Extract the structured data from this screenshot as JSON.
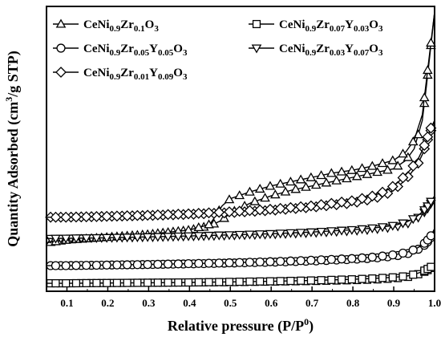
{
  "chart_data": {
    "type": "line",
    "xlabel": "Relative pressure (P/P",
    "xlabel_sup": "0",
    "xlabel_end": ")",
    "ylabel": "Quantity Adsorbed (cm",
    "ylabel_sup": "3",
    "ylabel_end": "/g STP)",
    "xlim": [
      0.05,
      1.0
    ],
    "xticks": [
      "0.1",
      "0.2",
      "0.3",
      "0.4",
      "0.5",
      "0.6",
      "0.7",
      "0.8",
      "0.9",
      "1.0"
    ],
    "xtick_values": [
      0.1,
      0.2,
      0.3,
      0.4,
      0.5,
      0.6,
      0.7,
      0.8,
      0.9,
      1.0
    ],
    "ylim": [
      0,
      100
    ],
    "y_axis_values_shown": false,
    "grid": false,
    "legend_placement": "top",
    "colors": {
      "line": "#000000",
      "marker_fill": "#ffffff",
      "background": "#ffffff"
    },
    "series": [
      {
        "name": [
          [
            "CeNi",
            ""
          ],
          [
            "0.9",
            "sub"
          ],
          [
            "Zr",
            ""
          ],
          [
            "0.1",
            "sub"
          ],
          [
            "O",
            ""
          ],
          [
            "3",
            "sub"
          ]
        ],
        "marker": "triangle-up",
        "x": [
          0.05,
          0.1,
          0.2,
          0.3,
          0.4,
          0.45,
          0.48,
          0.5,
          0.55,
          0.6,
          0.65,
          0.7,
          0.75,
          0.8,
          0.85,
          0.9,
          0.93,
          0.95,
          0.97,
          0.98,
          0.99,
          1.0
        ],
        "adsorption": [
          17.0,
          18.0,
          19.0,
          20.0,
          21.5,
          23.0,
          25.0,
          27.5,
          31.0,
          33.5,
          35.5,
          37.0,
          38.5,
          40.0,
          41.5,
          43.0,
          46.0,
          50.0,
          60.0,
          72.0,
          85.0,
          98.0
        ],
        "desorption": [
          17.0,
          18.0,
          19.0,
          20.0,
          21.5,
          23.5,
          30.0,
          32.5,
          35.0,
          37.0,
          38.5,
          40.0,
          41.5,
          42.5,
          44.0,
          46.0,
          49.0,
          53.0,
          62.0,
          74.0,
          86.0,
          98.0
        ]
      },
      {
        "name": [
          [
            "CeNi",
            ""
          ],
          [
            "0.9",
            "sub"
          ],
          [
            "Zr",
            ""
          ],
          [
            "0.07",
            "sub"
          ],
          [
            "Y",
            ""
          ],
          [
            "0.03",
            "sub"
          ],
          [
            "O",
            ""
          ],
          [
            "3",
            "sub"
          ]
        ],
        "marker": "square",
        "x": [
          0.05,
          0.1,
          0.2,
          0.3,
          0.4,
          0.5,
          0.6,
          0.7,
          0.8,
          0.85,
          0.9,
          0.93,
          0.95,
          0.97,
          0.98,
          0.99,
          1.0
        ],
        "adsorption": [
          2.8,
          2.8,
          2.9,
          3.0,
          3.1,
          3.2,
          3.4,
          3.6,
          3.9,
          4.1,
          4.5,
          4.9,
          5.5,
          6.5,
          7.2,
          8.0,
          10.0
        ],
        "desorption": [
          2.8,
          2.8,
          2.9,
          3.0,
          3.1,
          3.3,
          3.5,
          3.8,
          4.2,
          4.5,
          4.9,
          5.3,
          5.9,
          6.9,
          7.6,
          8.4,
          10.0
        ]
      },
      {
        "name": [
          [
            "CeNi",
            ""
          ],
          [
            "0.9",
            "sub"
          ],
          [
            "Zr",
            ""
          ],
          [
            "0.05",
            "sub"
          ],
          [
            "Y",
            ""
          ],
          [
            "0.05",
            "sub"
          ],
          [
            "O",
            ""
          ],
          [
            "3",
            "sub"
          ]
        ],
        "marker": "circle",
        "x": [
          0.05,
          0.1,
          0.2,
          0.3,
          0.4,
          0.5,
          0.6,
          0.7,
          0.8,
          0.85,
          0.9,
          0.93,
          0.95,
          0.97,
          0.98,
          0.99,
          1.0
        ],
        "adsorption": [
          9.0,
          9.0,
          9.2,
          9.4,
          9.6,
          9.9,
          10.2,
          10.6,
          11.2,
          11.6,
          12.3,
          13.0,
          14.0,
          15.5,
          16.8,
          18.5,
          22.0
        ],
        "desorption": [
          9.0,
          9.0,
          9.2,
          9.4,
          9.7,
          10.0,
          10.4,
          10.9,
          11.5,
          12.0,
          12.8,
          13.6,
          14.6,
          16.2,
          17.5,
          19.2,
          22.0
        ]
      },
      {
        "name": [
          [
            "CeNi",
            ""
          ],
          [
            "0.9",
            "sub"
          ],
          [
            "Zr",
            ""
          ],
          [
            "0.03",
            "sub"
          ],
          [
            "Y",
            ""
          ],
          [
            "0.07",
            "sub"
          ],
          [
            "O",
            ""
          ],
          [
            "3",
            "sub"
          ]
        ],
        "marker": "triangle-down",
        "x": [
          0.05,
          0.1,
          0.2,
          0.3,
          0.4,
          0.5,
          0.6,
          0.7,
          0.8,
          0.85,
          0.9,
          0.93,
          0.95,
          0.97,
          0.98,
          0.99,
          1.0
        ],
        "adsorption": [
          18.5,
          18.6,
          18.8,
          19.0,
          19.3,
          19.6,
          20.0,
          20.5,
          21.2,
          21.7,
          22.5,
          23.5,
          24.8,
          27.0,
          28.5,
          30.5,
          33.5
        ],
        "desorption": [
          18.5,
          18.6,
          18.8,
          19.1,
          19.4,
          19.8,
          20.2,
          20.8,
          21.6,
          22.2,
          23.1,
          24.2,
          25.6,
          27.8,
          29.3,
          31.3,
          33.5
        ]
      },
      {
        "name": [
          [
            "CeNi",
            ""
          ],
          [
            "0.9",
            "sub"
          ],
          [
            "Zr",
            ""
          ],
          [
            "0.01",
            "sub"
          ],
          [
            "Y",
            ""
          ],
          [
            "0.09",
            "sub"
          ],
          [
            "O",
            ""
          ],
          [
            "3",
            "sub"
          ]
        ],
        "marker": "diamond",
        "x": [
          0.05,
          0.1,
          0.2,
          0.3,
          0.4,
          0.5,
          0.6,
          0.7,
          0.8,
          0.85,
          0.88,
          0.9,
          0.92,
          0.94,
          0.96,
          0.97,
          0.98,
          0.99,
          1.0
        ],
        "adsorption": [
          26.0,
          26.0,
          26.3,
          26.6,
          27.0,
          27.6,
          28.4,
          29.5,
          31.0,
          32.5,
          34.0,
          35.5,
          38.0,
          41.0,
          45.0,
          48.0,
          52.0,
          56.0,
          60.0
        ],
        "desorption": [
          26.0,
          26.0,
          26.3,
          26.7,
          27.2,
          27.9,
          28.8,
          30.0,
          31.8,
          33.5,
          35.2,
          37.0,
          39.5,
          42.5,
          46.5,
          49.5,
          53.0,
          57.0,
          60.0
        ]
      }
    ]
  }
}
